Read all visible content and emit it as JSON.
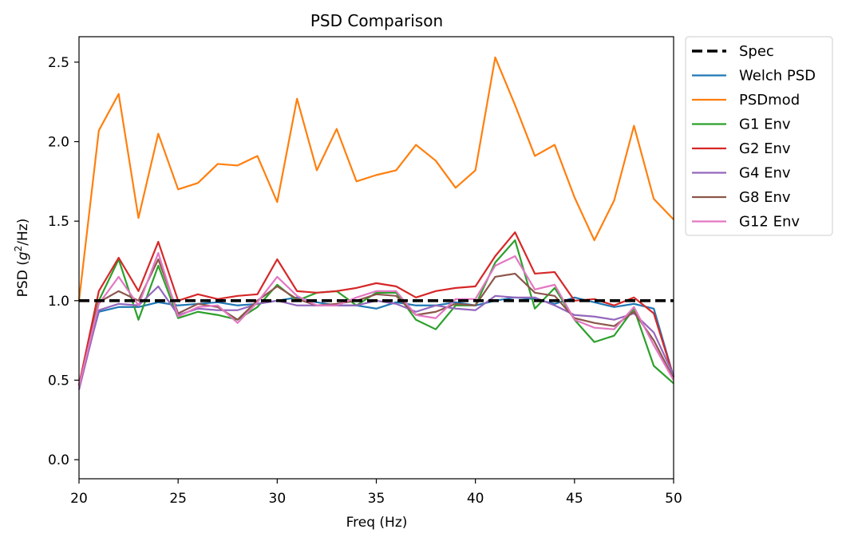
{
  "chart_data": {
    "type": "line",
    "title": "PSD Comparison",
    "xlabel": "Freq (Hz)",
    "ylabel_prefix": "PSD (",
    "ylabel_var": "g",
    "ylabel_sup": "2",
    "ylabel_suffix": "/Hz)",
    "xlim": [
      20,
      50
    ],
    "ylim": [
      -0.12,
      2.66
    ],
    "xticks": [
      20,
      25,
      30,
      35,
      40,
      45,
      50
    ],
    "xtick_labels": [
      "20",
      "25",
      "30",
      "35",
      "40",
      "45",
      "50"
    ],
    "yticks": [
      0.0,
      0.5,
      1.0,
      1.5,
      2.0,
      2.5
    ],
    "ytick_labels": [
      "0.0",
      "0.5",
      "1.0",
      "1.5",
      "2.0",
      "2.5"
    ],
    "grid": false,
    "legend_position": "outside-right-top",
    "x": [
      20,
      21,
      22,
      23,
      24,
      25,
      26,
      27,
      28,
      29,
      30,
      31,
      32,
      33,
      34,
      35,
      36,
      37,
      38,
      39,
      40,
      41,
      42,
      43,
      44,
      45,
      46,
      47,
      48,
      49,
      50
    ],
    "series": [
      {
        "name": "Spec",
        "color": "#000000",
        "dashed": true,
        "x": [
          20,
          50
        ],
        "values": [
          1.0,
          1.0
        ]
      },
      {
        "name": "Welch PSD",
        "color": "#1f77b4",
        "values": [
          0.47,
          0.93,
          0.96,
          0.96,
          0.99,
          0.97,
          0.98,
          0.99,
          0.97,
          0.98,
          1.0,
          1.02,
          0.99,
          0.97,
          0.97,
          0.95,
          0.99,
          0.97,
          0.97,
          0.99,
          0.97,
          1.0,
          1.02,
          1.01,
          0.98,
          1.02,
          0.99,
          0.96,
          0.98,
          0.95,
          0.52
        ]
      },
      {
        "name": "PSDmod",
        "color": "#ff7f0e",
        "values": [
          1.0,
          2.07,
          2.3,
          1.52,
          2.05,
          1.7,
          1.74,
          1.86,
          1.85,
          1.91,
          1.62,
          2.27,
          1.82,
          2.08,
          1.75,
          1.79,
          1.82,
          1.98,
          1.88,
          1.71,
          1.82,
          2.53,
          2.23,
          1.91,
          1.98,
          1.65,
          1.38,
          1.63,
          2.1,
          1.64,
          1.51
        ]
      },
      {
        "name": "G1 Env",
        "color": "#2ca02c",
        "values": [
          0.47,
          1.0,
          1.26,
          0.88,
          1.22,
          0.89,
          0.93,
          0.91,
          0.88,
          0.96,
          1.1,
          1.0,
          1.05,
          1.06,
          0.97,
          1.05,
          1.05,
          0.88,
          0.82,
          0.97,
          0.97,
          1.24,
          1.38,
          0.95,
          1.08,
          0.88,
          0.74,
          0.78,
          0.95,
          0.59,
          0.48
        ]
      },
      {
        "name": "G2 Env",
        "color": "#d62728",
        "values": [
          0.47,
          1.06,
          1.27,
          1.06,
          1.37,
          1.0,
          1.04,
          1.01,
          1.03,
          1.04,
          1.26,
          1.06,
          1.05,
          1.06,
          1.08,
          1.11,
          1.09,
          1.02,
          1.06,
          1.08,
          1.09,
          1.28,
          1.43,
          1.17,
          1.18,
          1.0,
          1.01,
          0.97,
          1.02,
          0.92,
          0.52
        ]
      },
      {
        "name": "G4 Env",
        "color": "#9467bd",
        "values": [
          0.44,
          0.94,
          0.98,
          0.97,
          1.09,
          0.91,
          0.95,
          0.94,
          0.94,
          0.98,
          1.0,
          0.97,
          0.97,
          0.97,
          0.97,
          1.0,
          0.98,
          0.93,
          0.97,
          0.95,
          0.94,
          1.03,
          1.02,
          1.02,
          0.97,
          0.91,
          0.9,
          0.88,
          0.92,
          0.8,
          0.53
        ]
      },
      {
        "name": "G8 Env",
        "color": "#8c564b",
        "values": [
          0.46,
          0.99,
          1.06,
          1.0,
          1.26,
          0.92,
          0.98,
          0.96,
          0.88,
          1.0,
          1.09,
          1.01,
          0.97,
          0.98,
          1.0,
          1.04,
          1.03,
          0.91,
          0.93,
          0.98,
          0.97,
          1.15,
          1.17,
          1.05,
          1.03,
          0.89,
          0.86,
          0.84,
          0.93,
          0.75,
          0.51
        ]
      },
      {
        "name": "G12 Env",
        "color": "#e377c2",
        "values": [
          0.46,
          0.98,
          1.15,
          0.97,
          1.3,
          0.9,
          0.96,
          0.97,
          0.86,
          0.99,
          1.15,
          1.03,
          0.97,
          0.97,
          1.02,
          1.06,
          1.06,
          0.91,
          0.89,
          1.01,
          1.01,
          1.22,
          1.28,
          1.07,
          1.1,
          0.88,
          0.83,
          0.82,
          0.96,
          0.72,
          0.5
        ]
      }
    ]
  }
}
